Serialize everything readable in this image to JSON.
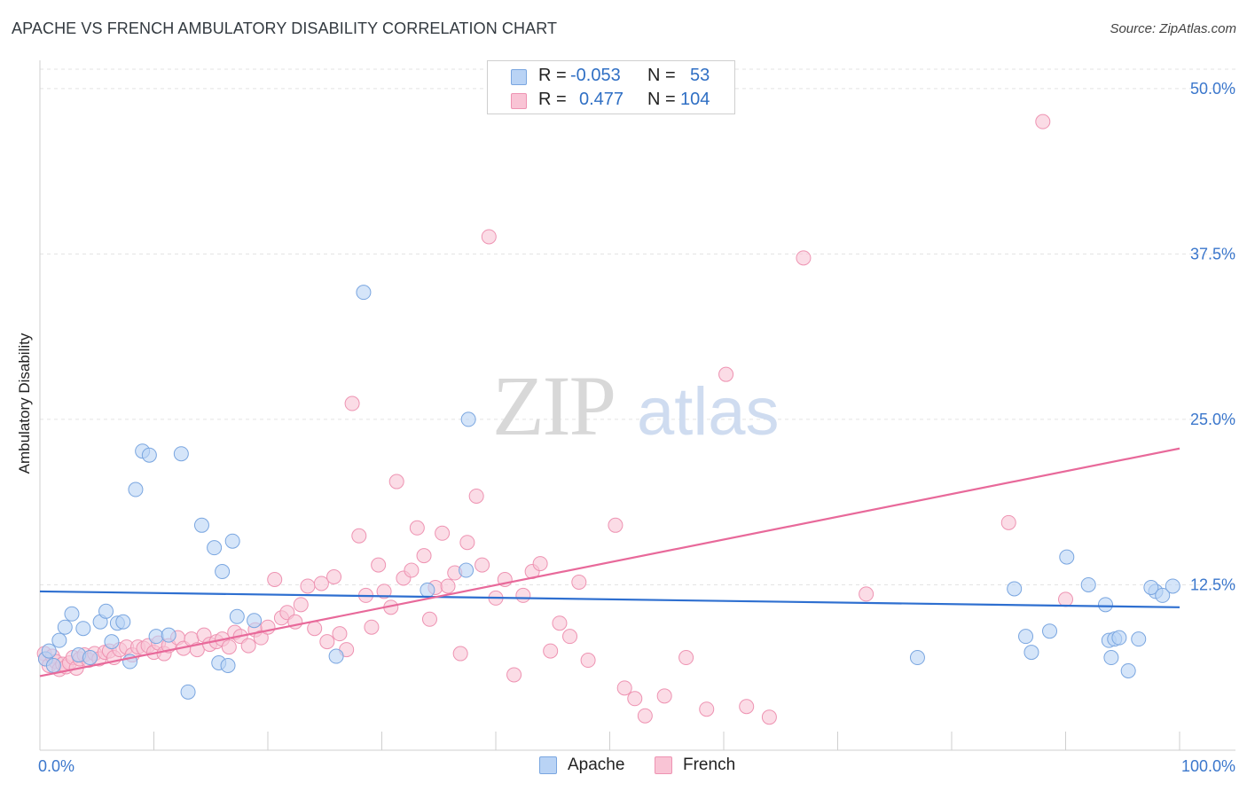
{
  "title": "APACHE VS FRENCH AMBULATORY DISABILITY CORRELATION CHART",
  "source": "Source: ZipAtlas.com",
  "watermark": {
    "zip": "ZIP",
    "atlas": "atlas"
  },
  "legend": {
    "rows": [
      {
        "r_label": "R =",
        "r_value": "-0.053",
        "n_label": "N =",
        "n_value": "53"
      },
      {
        "r_label": "R =",
        "r_value": "0.477",
        "n_label": "N =",
        "n_value": "104"
      }
    ]
  },
  "bottom_legend": {
    "apache": "Apache",
    "french": "French"
  },
  "colors": {
    "apache_fill": "#b9d3f5",
    "apache_stroke": "#7aa6e0",
    "apache_line": "#2e6fd0",
    "french_fill": "#f9c4d5",
    "french_stroke": "#ee93b2",
    "french_line": "#e8699a",
    "tick_label": "#3b77cc",
    "grid": "#e3e3e3"
  },
  "chart_data": {
    "type": "scatter",
    "title": "APACHE VS FRENCH AMBULATORY DISABILITY CORRELATION CHART",
    "xlabel": "",
    "ylabel": "Ambulatory Disability",
    "xlim": [
      0,
      100
    ],
    "ylim": [
      0,
      52
    ],
    "x_tick_labels": [
      "0.0%",
      "100.0%"
    ],
    "y_ticks": [
      12.5,
      25.0,
      37.5,
      50.0
    ],
    "y_tick_labels": [
      "12.5%",
      "25.0%",
      "37.5%",
      "50.0%"
    ],
    "grid": true,
    "legend_position": "top-center",
    "series": [
      {
        "name": "Apache",
        "x": [
          0.5,
          0.8,
          1.2,
          1.7,
          2.2,
          2.8,
          3.4,
          3.8,
          4.4,
          5.3,
          5.8,
          6.3,
          6.8,
          7.3,
          7.9,
          8.4,
          9.0,
          9.6,
          10.2,
          11.3,
          12.4,
          13.0,
          14.2,
          15.3,
          15.7,
          16.0,
          16.5,
          16.9,
          17.3,
          18.8,
          26.0,
          28.4,
          34.0,
          37.4,
          37.6,
          77.0,
          92.0,
          97.9,
          86.5,
          87.0,
          94.0,
          95.5,
          90.1,
          85.5,
          88.6,
          93.5,
          93.8,
          94.3,
          94.7,
          96.4,
          97.5,
          98.5,
          99.4
        ],
        "y": [
          6.9,
          7.5,
          6.4,
          8.3,
          9.3,
          10.3,
          7.2,
          9.2,
          7.0,
          9.7,
          10.5,
          8.2,
          9.6,
          9.7,
          6.7,
          19.7,
          22.6,
          22.3,
          8.6,
          8.7,
          22.4,
          4.4,
          17.0,
          15.3,
          6.6,
          13.5,
          6.4,
          15.8,
          10.1,
          9.8,
          7.1,
          34.6,
          12.1,
          13.6,
          25.0,
          7.0,
          12.5,
          12.0,
          8.6,
          7.4,
          7.0,
          6.0,
          14.6,
          12.2,
          9.0,
          11.0,
          8.3,
          8.4,
          8.5,
          8.4,
          12.3,
          11.7,
          12.4
        ]
      },
      {
        "name": "French",
        "x": [
          0.4,
          0.5,
          0.8,
          1.1,
          1.4,
          1.7,
          2.0,
          2.3,
          2.6,
          2.9,
          3.2,
          3.5,
          3.9,
          4.3,
          4.8,
          5.2,
          5.7,
          6.1,
          6.5,
          7.0,
          7.6,
          8.1,
          8.6,
          9.1,
          9.5,
          10.0,
          10.4,
          10.9,
          11.3,
          12.1,
          12.6,
          13.3,
          13.8,
          14.4,
          14.9,
          15.5,
          16.0,
          16.6,
          17.1,
          17.6,
          18.3,
          18.9,
          19.4,
          20.0,
          20.6,
          21.2,
          21.7,
          22.4,
          22.9,
          23.5,
          24.1,
          24.7,
          25.2,
          25.8,
          26.3,
          26.9,
          27.4,
          28.0,
          28.6,
          29.1,
          29.7,
          30.2,
          30.8,
          31.3,
          31.9,
          32.6,
          33.1,
          33.7,
          34.2,
          34.7,
          35.3,
          35.8,
          36.4,
          36.9,
          37.5,
          38.3,
          38.8,
          39.4,
          40.0,
          40.8,
          41.6,
          42.4,
          43.2,
          43.9,
          44.8,
          45.6,
          46.5,
          47.3,
          48.1,
          50.5,
          51.3,
          52.2,
          53.1,
          54.8,
          56.7,
          58.5,
          60.2,
          62.0,
          64.0,
          67.0,
          72.5,
          85.0,
          88.0,
          90.0
        ],
        "y": [
          7.3,
          6.9,
          6.4,
          7.1,
          6.7,
          6.1,
          6.5,
          6.3,
          6.6,
          7.0,
          6.2,
          6.9,
          7.2,
          6.8,
          7.3,
          6.9,
          7.4,
          7.5,
          7.0,
          7.6,
          7.8,
          7.2,
          7.8,
          7.7,
          7.9,
          7.4,
          8.1,
          7.3,
          7.9,
          8.5,
          7.7,
          8.4,
          7.6,
          8.7,
          8.0,
          8.2,
          8.4,
          7.8,
          8.9,
          8.6,
          7.9,
          9.1,
          8.5,
          9.3,
          12.9,
          10.0,
          10.4,
          9.7,
          11.0,
          12.4,
          9.2,
          12.6,
          8.2,
          13.1,
          8.8,
          7.6,
          26.2,
          16.2,
          11.7,
          9.3,
          14.0,
          12.0,
          10.8,
          20.3,
          13.0,
          13.6,
          16.8,
          14.7,
          9.9,
          12.3,
          16.4,
          12.4,
          13.4,
          7.3,
          15.7,
          19.2,
          14.0,
          38.8,
          11.5,
          12.9,
          5.7,
          11.7,
          13.5,
          14.1,
          7.5,
          9.6,
          8.6,
          12.7,
          6.8,
          17.0,
          4.7,
          3.9,
          2.6,
          4.1,
          7.0,
          3.1,
          28.4,
          3.3,
          2.5,
          37.2,
          11.8,
          17.2,
          47.5,
          11.4
        ]
      }
    ],
    "trend_lines": [
      {
        "name": "Apache",
        "x": [
          0,
          100
        ],
        "y": [
          12.0,
          10.8
        ]
      },
      {
        "name": "French",
        "x": [
          0,
          100
        ],
        "y": [
          5.6,
          22.8
        ]
      }
    ]
  }
}
